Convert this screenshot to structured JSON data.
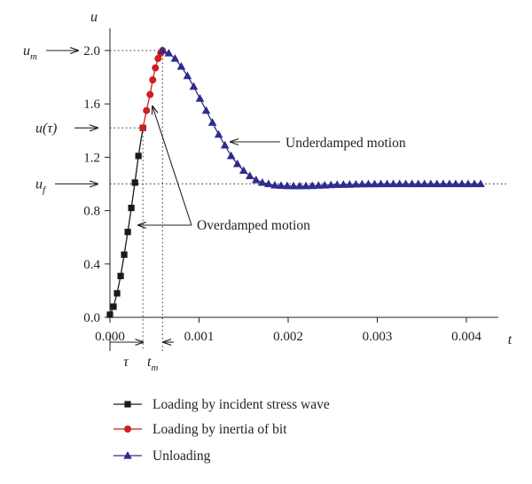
{
  "chart_data": {
    "type": "line",
    "xlabel": "t",
    "ylabel": "u",
    "xlim": [
      0,
      0.0045
    ],
    "ylim": [
      0,
      2.0
    ],
    "x_ticks": [
      {
        "value": 0.0,
        "label": "0.000"
      },
      {
        "value": 0.001,
        "label": "0.001"
      },
      {
        "value": 0.002,
        "label": "0.002"
      },
      {
        "value": 0.003,
        "label": "0.003"
      },
      {
        "value": 0.004,
        "label": "0.004"
      }
    ],
    "y_ticks": [
      {
        "value": 0.0,
        "label": "0.0"
      },
      {
        "value": 0.4,
        "label": "0.4"
      },
      {
        "value": 0.8,
        "label": "0.8"
      },
      {
        "value": 1.2,
        "label": "1.2"
      },
      {
        "value": 1.6,
        "label": "1.6"
      },
      {
        "value": 2.0,
        "label": "2.0"
      }
    ],
    "grid": false,
    "legend_position": "bottom-left",
    "reference_lines": {
      "u_m": 2.0,
      "u_tau": 1.42,
      "u_f": 1.0,
      "tau": 0.00037,
      "t_m": 0.00059
    },
    "series": [
      {
        "name": "Loading by incident stress wave",
        "color": "#1a1a1a",
        "marker": "square",
        "x": [
          0.0,
          4e-05,
          8e-05,
          0.00012,
          0.00016,
          0.0002,
          0.00024,
          0.00028,
          0.00032,
          0.00037
        ],
        "y": [
          0.02,
          0.08,
          0.18,
          0.31,
          0.47,
          0.64,
          0.82,
          1.01,
          1.21,
          1.42
        ]
      },
      {
        "name": "Loading by inertia of bit",
        "color": "#cc1f1f",
        "marker": "circle",
        "x": [
          0.00037,
          0.00041,
          0.00045,
          0.00048,
          0.00051,
          0.00054,
          0.00057,
          0.00059
        ],
        "y": [
          1.42,
          1.55,
          1.67,
          1.78,
          1.87,
          1.94,
          1.98,
          2.0
        ]
      },
      {
        "name": "Unloading",
        "color": "#2e2b8f",
        "marker": "triangle",
        "x": [
          0.00059,
          0.00066,
          0.00073,
          0.0008,
          0.00087,
          0.00094,
          0.00101,
          0.00108,
          0.00115,
          0.00122,
          0.00129,
          0.00136,
          0.00143,
          0.0015,
          0.00157,
          0.00164,
          0.00171,
          0.00178,
          0.00185,
          0.00192,
          0.00199,
          0.00206,
          0.00213,
          0.0022,
          0.00227,
          0.00234,
          0.00241,
          0.00248,
          0.00255,
          0.00262,
          0.00269,
          0.00276,
          0.00283,
          0.0029,
          0.00297,
          0.00304,
          0.00311,
          0.00318,
          0.00325,
          0.00332,
          0.00339,
          0.00346,
          0.00353,
          0.0036,
          0.00367,
          0.00374,
          0.00381,
          0.00388,
          0.00395,
          0.00402,
          0.00409,
          0.00416
        ],
        "y": [
          2.0,
          1.98,
          1.94,
          1.88,
          1.81,
          1.73,
          1.64,
          1.55,
          1.46,
          1.37,
          1.29,
          1.21,
          1.15,
          1.1,
          1.06,
          1.03,
          1.01,
          1.0,
          0.99,
          0.987,
          0.985,
          0.984,
          0.984,
          0.985,
          0.986,
          0.988,
          0.99,
          0.992,
          0.994,
          0.995,
          0.996,
          0.997,
          0.998,
          0.999,
          0.999,
          1.0,
          1.0,
          1.0,
          1.0,
          1.0,
          1.0,
          1.0,
          1.0,
          1.0,
          1.0,
          1.0,
          1.0,
          1.0,
          1.0,
          1.0,
          1.0,
          1.0
        ]
      }
    ],
    "annotations": {
      "u_m_label": "u",
      "u_m_sub": "m",
      "u_tau_label": "u(τ)",
      "u_f_label": "u",
      "u_f_sub": "f",
      "tau_label": "τ",
      "t_m_label": "t",
      "t_m_sub": "m",
      "underdamped": "Underdamped motion",
      "overdamped": "Overdamped motion"
    }
  }
}
